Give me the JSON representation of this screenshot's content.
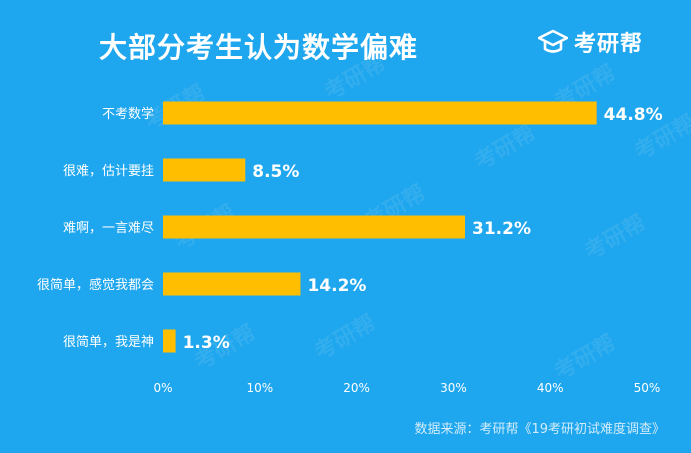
{
  "header": {
    "title": "大部分考生认为数学偏难",
    "brand": "考研帮",
    "logo_icon": "graduation-cap-icon"
  },
  "watermark": "考研帮",
  "footer": {
    "source": "数据来源：考研帮《19考研初试难度调查》"
  },
  "colors": {
    "background": "#1ea6ee",
    "bar": "#ffbf00",
    "text": "#ffffff",
    "source_text": "#d2ecfb"
  },
  "chart_data": {
    "type": "bar",
    "orientation": "horizontal",
    "categories": [
      "不考数学",
      "很难，估计要挂",
      "难啊，一言难尽",
      "很简单，感觉我都会",
      "很简单，我是神"
    ],
    "values": [
      44.8,
      8.5,
      31.2,
      14.2,
      1.3
    ],
    "value_labels": [
      "44.8%",
      "8.5%",
      "31.2%",
      "14.2%",
      "1.3%"
    ],
    "x_ticks": [
      "0%",
      "10%",
      "20%",
      "30%",
      "40%",
      "50%"
    ],
    "xlim": [
      0,
      50
    ],
    "grid": false
  }
}
